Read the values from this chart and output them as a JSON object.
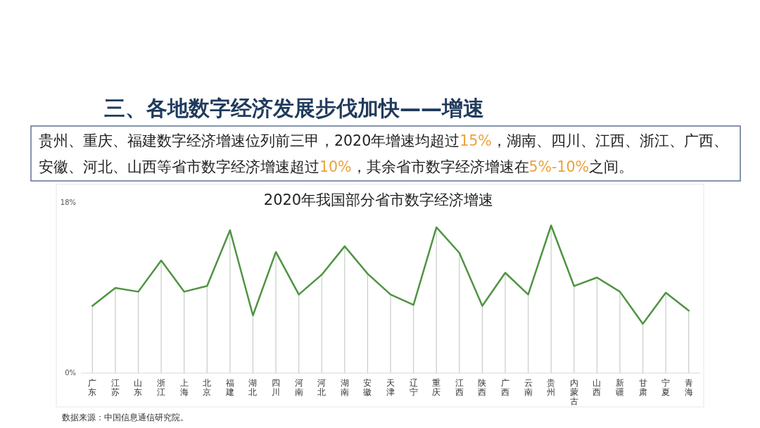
{
  "chart_data": {
    "type": "line",
    "title": "2020年我国部分省市数字经济增速",
    "categories": [
      "广东",
      "江苏",
      "山东",
      "浙江",
      "上海",
      "北京",
      "福建",
      "湖北",
      "四川",
      "河南",
      "河北",
      "湖南",
      "安徽",
      "天津",
      "辽宁",
      "重庆",
      "江西",
      "陕西",
      "广西",
      "云南",
      "贵州",
      "内蒙古",
      "山西",
      "新疆",
      "甘肃",
      "宁夏",
      "青海"
    ],
    "series": [
      {
        "type": "bar",
        "color": "#c5cfc2",
        "values": [
          7.1,
          9.0,
          8.6,
          11.9,
          8.6,
          9.2,
          15.1,
          6.1,
          12.8,
          8.3,
          10.4,
          13.4,
          10.5,
          8.3,
          7.2,
          15.4,
          12.7,
          7.1,
          10.6,
          8.3,
          15.6,
          9.2,
          10.1,
          8.6,
          5.2,
          8.5,
          6.6
        ]
      },
      {
        "color": "#4f9442",
        "values": [
          7.1,
          9.0,
          8.6,
          11.9,
          8.6,
          9.2,
          15.1,
          6.1,
          12.8,
          8.3,
          10.4,
          13.4,
          10.5,
          8.3,
          7.2,
          15.4,
          12.7,
          7.1,
          10.6,
          8.3,
          15.6,
          9.2,
          10.1,
          8.6,
          5.2,
          8.5,
          6.6
        ]
      }
    ],
    "ylim": [
      0,
      18
    ],
    "yticks": [
      {
        "value": 0,
        "label": "0%"
      },
      {
        "value": 18,
        "label": "18%"
      }
    ],
    "annotations": [
      "三、各地数字经济发展步伐加快——增速",
      "贵州、重庆、福建数字经济增速位列前三甲，2020年增速均超过15%，湖南、四川、江西、浙江、广西、安徽、河北、山西等省市数字经济增速超过10%，其余省市数字经济增速在5%-10%之间。",
      "数据来源：中国信息通信研究院。"
    ]
  }
}
